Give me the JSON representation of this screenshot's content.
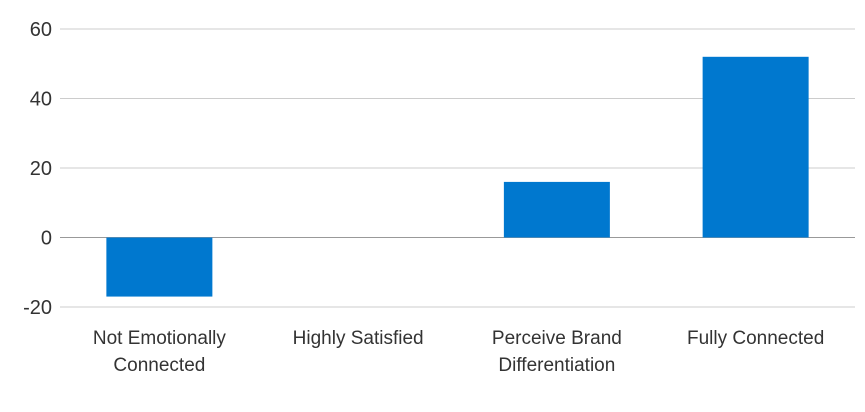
{
  "chart_data": {
    "type": "bar",
    "title": "",
    "xlabel": "",
    "ylabel": "",
    "categories": [
      [
        "Not Emotionally",
        "Connected"
      ],
      [
        "Highly Satisfied"
      ],
      [
        "Perceive Brand",
        "Differentiation"
      ],
      [
        "Fully Connected"
      ]
    ],
    "values": [
      -17,
      0,
      16,
      52
    ],
    "ylim": [
      -20,
      60
    ],
    "yticks": [
      60,
      40,
      20,
      0,
      -20
    ],
    "ytick_labels": [
      "60",
      "40",
      "20",
      "0",
      "-20"
    ],
    "grid": true,
    "legend": "none",
    "bar_color": "#0078CF"
  }
}
